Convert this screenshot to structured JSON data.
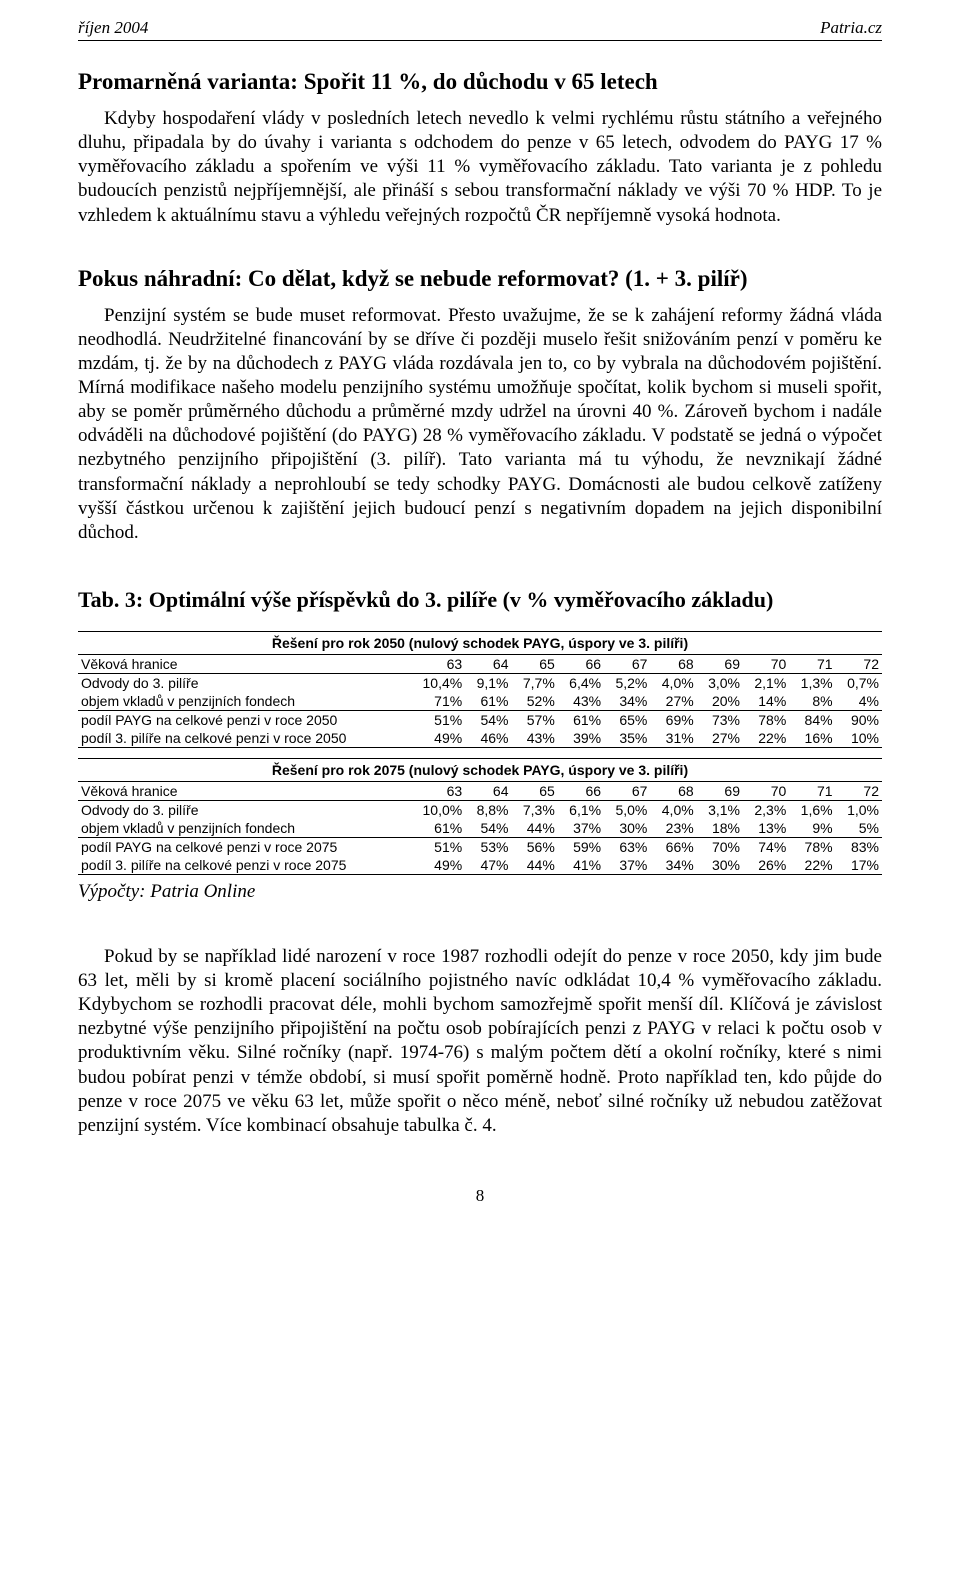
{
  "header": {
    "left": "říjen 2004",
    "right": "Patria.cz"
  },
  "section1": {
    "title": "Promarněná varianta: Spořit 11 %, do důchodu v 65 letech",
    "para": "Kdyby hospodaření vlády v posledních letech nevedlo k velmi rychlému růstu státního a veřejného dluhu, připadala by do úvahy i varianta s odchodem do penze v 65 letech, odvodem do PAYG 17 % vyměřovacího základu a spořením ve výši 11 % vyměřovacího základu. Tato varianta je z pohledu budoucích penzistů nejpříjemnější, ale přináší s sebou transformační náklady ve výši 70 % HDP. To je vzhledem k aktuálnímu stavu a výhledu veřejných rozpočtů ČR nepříjemně vysoká hodnota."
  },
  "section2": {
    "title": "Pokus náhradní: Co dělat, když se nebude reformovat? (1. + 3. pilíř)",
    "para": "Penzijní systém se bude muset reformovat. Přesto uvažujme, že se k zahájení reformy žádná vláda neodhodlá. Neudržitelné financování by se dříve či později muselo řešit snižováním penzí v poměru ke mzdám, tj. že by na důchodech z PAYG vláda rozdávala jen to, co by vybrala na důchodovém pojištění. Mírná modifikace našeho modelu penzijního systému umožňuje spočítat, kolik bychom si museli spořit, aby se poměr průměrného důchodu a průměrné mzdy udržel na úrovni 40 %. Zároveň bychom i nadále odváděli na důchodové pojištění (do PAYG) 28 % vyměřovacího základu. V podstatě se jedná o výpočet nezbytného penzijního připojištění (3. pilíř). Tato varianta má tu výhodu, že nevznikají žádné transformační náklady a neprohloubí se tedy schodky PAYG. Domácnosti ale budou celkově zatíženy vyšší částkou určenou k zajištění jejich budoucí penzí s negativním dopadem na jejich disponibilní důchod."
  },
  "table_caption": "Tab. 3: Optimální výše příspěvků do 3. pilíře (v % vyměřovacího základu)",
  "table1": {
    "caption": "Řešení pro rok 2050 (nulový schodek PAYG, úspory ve 3. pilíři)",
    "cols": [
      "63",
      "64",
      "65",
      "66",
      "67",
      "68",
      "69",
      "70",
      "71",
      "72"
    ],
    "rows": [
      {
        "label": "Věková hranice",
        "vals": [
          "63",
          "64",
          "65",
          "66",
          "67",
          "68",
          "69",
          "70",
          "71",
          "72"
        ]
      },
      {
        "label": "Odvody do 3. pilíře",
        "vals": [
          "10,4%",
          "9,1%",
          "7,7%",
          "6,4%",
          "5,2%",
          "4,0%",
          "3,0%",
          "2,1%",
          "1,3%",
          "0,7%"
        ]
      },
      {
        "label": "objem vkladů v penzijních fondech",
        "vals": [
          "71%",
          "61%",
          "52%",
          "43%",
          "34%",
          "27%",
          "20%",
          "14%",
          "8%",
          "4%"
        ]
      },
      {
        "label": "podíl PAYG na celkové penzi v roce 2050",
        "vals": [
          "51%",
          "54%",
          "57%",
          "61%",
          "65%",
          "69%",
          "73%",
          "78%",
          "84%",
          "90%"
        ]
      },
      {
        "label": "podíl 3. pilíře na celkové penzi v roce 2050",
        "vals": [
          "49%",
          "46%",
          "43%",
          "39%",
          "35%",
          "31%",
          "27%",
          "22%",
          "16%",
          "10%"
        ]
      }
    ]
  },
  "table2": {
    "caption": "Řešení pro rok 2075 (nulový schodek PAYG, úspory ve 3. pilíři)",
    "rows": [
      {
        "label": "Věková hranice",
        "vals": [
          "63",
          "64",
          "65",
          "66",
          "67",
          "68",
          "69",
          "70",
          "71",
          "72"
        ]
      },
      {
        "label": "Odvody do 3. pilíře",
        "vals": [
          "10,0%",
          "8,8%",
          "7,3%",
          "6,1%",
          "5,0%",
          "4,0%",
          "3,1%",
          "2,3%",
          "1,6%",
          "1,0%"
        ]
      },
      {
        "label": "objem vkladů v penzijních fondech",
        "vals": [
          "61%",
          "54%",
          "44%",
          "37%",
          "30%",
          "23%",
          "18%",
          "13%",
          "9%",
          "5%"
        ]
      },
      {
        "label": "podíl PAYG na celkové penzi v roce 2075",
        "vals": [
          "51%",
          "53%",
          "56%",
          "59%",
          "63%",
          "66%",
          "70%",
          "74%",
          "78%",
          "83%"
        ]
      },
      {
        "label": "podíl 3. pilíře na celkové penzi v roce 2075",
        "vals": [
          "49%",
          "47%",
          "44%",
          "41%",
          "37%",
          "34%",
          "30%",
          "26%",
          "22%",
          "17%"
        ]
      }
    ]
  },
  "source": "Výpočty: Patria Online",
  "closing_para": "Pokud by se například lidé narození v roce 1987 rozhodli odejít do penze v roce 2050, kdy jim bude 63 let, měli by si kromě placení sociálního pojistného navíc odkládat 10,4 % vyměřovacího základu. Kdybychom se rozhodli pracovat déle, mohli bychom samozřejmě spořit menší díl. Klíčová je závislost nezbytné výše penzijního připojištění na počtu osob pobírajících penzi z PAYG v relaci k počtu osob v produktivním věku. Silné ročníky (např. 1974-76) s malým počtem dětí a okolní ročníky, které s nimi budou pobírat penzi v témže období, si musí spořit poměrně hodně. Proto například ten, kdo půjde do penze v roce 2075 ve věku 63 let, může spořit o něco méně, neboť silné ročníky už nebudou zatěžovat penzijní systém. Více kombinací obsahuje tabulka č. 4.",
  "page_number": "8"
}
